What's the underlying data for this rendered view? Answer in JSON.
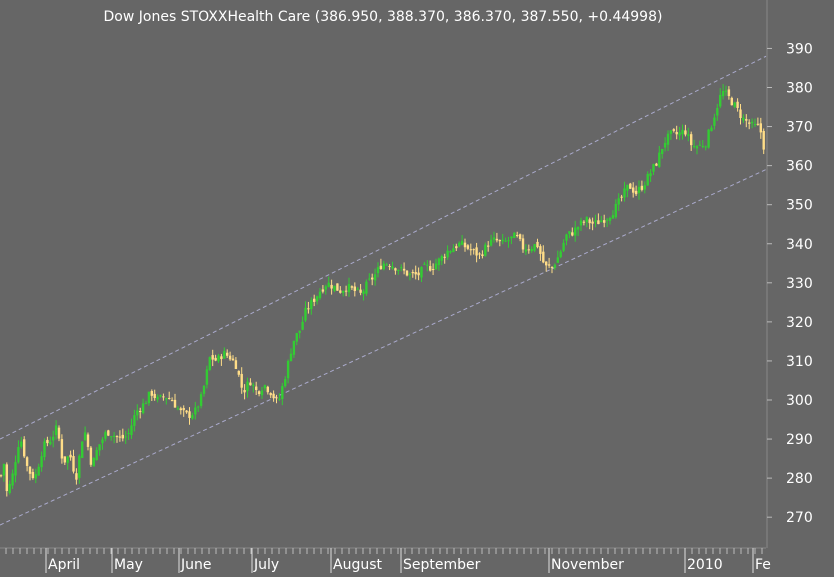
{
  "chart_data": {
    "type": "candlestick",
    "title": "Dow Jones STOXXHealth Care (386.950, 388.370, 386.370, 387.550, +0.44998)",
    "xlabel": "",
    "ylabel": "",
    "ylim": [
      262,
      396
    ],
    "grid": false,
    "legend": "none",
    "y_ticks": [
      "270",
      "280",
      "290",
      "300",
      "310",
      "320",
      "330",
      "340",
      "350",
      "360",
      "370",
      "380",
      "390"
    ],
    "x_ticks": [
      "April",
      "May",
      "June",
      "July",
      "August",
      "September",
      "November",
      "2010",
      "Fe"
    ],
    "series": [
      {
        "close_path": [
          [
            0,
            278
          ],
          [
            3,
            286
          ],
          [
            7,
            276
          ],
          [
            12,
            280
          ],
          [
            20,
            291
          ],
          [
            28,
            282
          ],
          [
            35,
            280
          ],
          [
            43,
            288
          ],
          [
            51,
            290
          ],
          [
            57,
            293
          ],
          [
            63,
            284
          ],
          [
            70,
            286
          ],
          [
            76,
            280
          ],
          [
            84,
            293
          ],
          [
            92,
            283
          ],
          [
            98,
            288
          ],
          [
            107,
            292
          ],
          [
            114,
            291
          ],
          [
            121,
            290
          ],
          [
            128,
            291
          ],
          [
            136,
            297
          ],
          [
            144,
            299
          ],
          [
            151,
            302
          ],
          [
            158,
            300
          ],
          [
            165,
            301
          ],
          [
            172,
            300
          ],
          [
            180,
            297
          ],
          [
            188,
            296
          ],
          [
            195,
            297
          ],
          [
            202,
            301
          ],
          [
            210,
            311
          ],
          [
            217,
            310
          ],
          [
            223,
            312
          ],
          [
            230,
            311
          ],
          [
            236,
            309
          ],
          [
            243,
            302
          ],
          [
            250,
            305
          ],
          [
            257,
            302
          ],
          [
            264,
            304
          ],
          [
            271,
            302
          ],
          [
            278,
            299
          ],
          [
            286,
            307
          ],
          [
            293,
            315
          ],
          [
            300,
            318
          ],
          [
            306,
            323
          ],
          [
            312,
            325
          ],
          [
            320,
            328
          ],
          [
            327,
            330
          ],
          [
            334,
            329
          ],
          [
            340,
            328
          ],
          [
            347,
            329
          ],
          [
            354,
            328
          ],
          [
            361,
            327
          ],
          [
            368,
            330
          ],
          [
            375,
            332
          ],
          [
            382,
            335
          ],
          [
            389,
            335
          ],
          [
            396,
            334
          ],
          [
            403,
            333
          ],
          [
            410,
            332
          ],
          [
            418,
            332
          ],
          [
            425,
            334
          ],
          [
            432,
            334
          ],
          [
            440,
            336
          ],
          [
            447,
            338
          ],
          [
            453,
            339
          ],
          [
            460,
            340
          ],
          [
            467,
            339
          ],
          [
            473,
            338
          ],
          [
            480,
            337
          ],
          [
            488,
            340
          ],
          [
            495,
            341
          ],
          [
            502,
            340
          ],
          [
            509,
            341
          ],
          [
            516,
            342
          ],
          [
            523,
            339
          ],
          [
            530,
            339
          ],
          [
            537,
            340
          ],
          [
            545,
            334
          ],
          [
            552,
            334
          ],
          [
            559,
            337
          ],
          [
            566,
            342
          ],
          [
            573,
            343
          ],
          [
            580,
            345
          ],
          [
            587,
            346
          ],
          [
            594,
            345
          ],
          [
            601,
            346
          ],
          [
            608,
            347
          ],
          [
            615,
            349
          ],
          [
            622,
            352
          ],
          [
            629,
            355
          ],
          [
            636,
            353
          ],
          [
            643,
            355
          ],
          [
            650,
            358
          ],
          [
            657,
            361
          ],
          [
            664,
            366
          ],
          [
            671,
            368
          ],
          [
            678,
            368
          ],
          [
            685,
            369
          ],
          [
            692,
            365
          ],
          [
            699,
            365
          ],
          [
            706,
            366
          ],
          [
            712,
            371
          ],
          [
            718,
            376
          ],
          [
            722,
            379
          ],
          [
            727,
            378
          ],
          [
            733,
            376
          ],
          [
            738,
            374
          ],
          [
            743,
            372
          ],
          [
            748,
            371
          ],
          [
            753,
            370
          ],
          [
            758,
            370
          ],
          [
            762,
            368
          ],
          [
            766,
            361
          ]
        ]
      }
    ],
    "channel": [
      {
        "name": "upper",
        "points": [
          [
            0,
            290
          ],
          [
            766,
            388
          ]
        ]
      },
      {
        "name": "lower",
        "points": [
          [
            0,
            268
          ],
          [
            766,
            359
          ]
        ]
      }
    ]
  }
}
